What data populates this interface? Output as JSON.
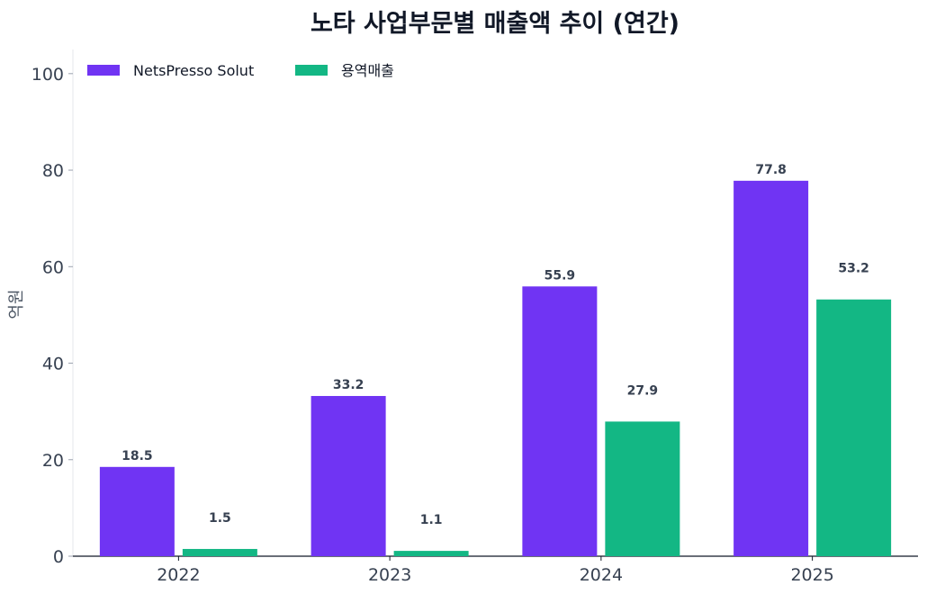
{
  "chart_data": {
    "type": "bar",
    "title": "노타 사업부문별 매출액 추이 (연간)",
    "ylabel": "억원",
    "xlabel": "",
    "categories": [
      "2022",
      "2023",
      "2024",
      "2025"
    ],
    "ylim": [
      0,
      105
    ],
    "yticks": [
      0,
      20,
      40,
      60,
      80,
      100
    ],
    "grid": false,
    "legend_position": "top-left",
    "series": [
      {
        "name": "NetsPresso Solut",
        "color": "#7034f3",
        "values": [
          18.5,
          33.2,
          55.9,
          77.8
        ],
        "labels": [
          "18.5",
          "33.2",
          "55.9",
          "77.8"
        ]
      },
      {
        "name": "용역매출",
        "color": "#13b784",
        "values": [
          1.5,
          1.1,
          27.9,
          53.2
        ],
        "labels": [
          "1.5",
          "1.1",
          "27.9",
          "53.2"
        ]
      }
    ]
  }
}
